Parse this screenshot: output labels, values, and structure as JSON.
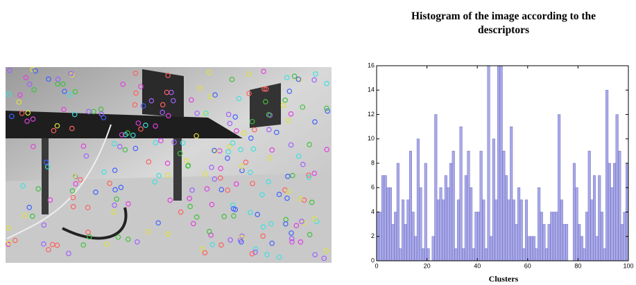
{
  "chart_data": {
    "type": "histogram",
    "title": "Histogram of the image according to the descriptors",
    "x_label": "Clusters",
    "bins": [
      0,
      1,
      2,
      3,
      4,
      5,
      6,
      7,
      8,
      9,
      10,
      11,
      12,
      13,
      14,
      15,
      16,
      17,
      18,
      19,
      20,
      21,
      22,
      23,
      24,
      25,
      26,
      27,
      28,
      29,
      30,
      31,
      32,
      33,
      34,
      35,
      36,
      37,
      38,
      39,
      40,
      41,
      42,
      43,
      44,
      45,
      46,
      47,
      48,
      49,
      50,
      51,
      52,
      53,
      54,
      55,
      56,
      57,
      58,
      59,
      60,
      61,
      62,
      63,
      64,
      65,
      66,
      67,
      68,
      69,
      70,
      71,
      72,
      73,
      74,
      75,
      76,
      77,
      78,
      79,
      80,
      81,
      82,
      83,
      84,
      85,
      86,
      87,
      88,
      89,
      90,
      91,
      92,
      93,
      94,
      95,
      96,
      97,
      98,
      99,
      100
    ],
    "values": [
      4,
      4,
      7,
      7,
      6,
      6,
      3,
      4,
      8,
      1,
      5,
      3,
      5,
      9,
      4,
      2,
      10,
      6,
      1,
      8,
      1,
      0,
      2,
      12,
      5,
      6,
      5,
      7,
      6,
      8,
      9,
      1,
      5,
      11,
      1,
      7,
      9,
      6,
      1,
      4,
      4,
      9,
      5,
      1,
      16,
      2,
      10,
      5,
      16,
      16,
      9,
      7,
      5,
      11,
      5,
      3,
      6,
      5,
      1,
      5,
      2,
      2,
      2,
      1,
      6,
      4,
      3,
      1,
      3,
      4,
      4,
      4,
      12,
      5,
      3,
      3,
      0,
      0,
      8,
      6,
      3,
      2,
      1,
      4,
      9,
      5,
      7,
      2,
      7,
      4,
      1,
      14,
      8,
      6,
      8,
      12,
      9,
      3,
      4,
      8
    ],
    "color": "#8c8ce0",
    "xlim": [
      0,
      100
    ],
    "ylim": [
      0,
      16
    ],
    "xticks": [
      0,
      20,
      40,
      60,
      80,
      100
    ],
    "yticks": [
      0,
      2,
      4,
      6,
      8,
      10,
      12,
      14,
      16
    ]
  }
}
